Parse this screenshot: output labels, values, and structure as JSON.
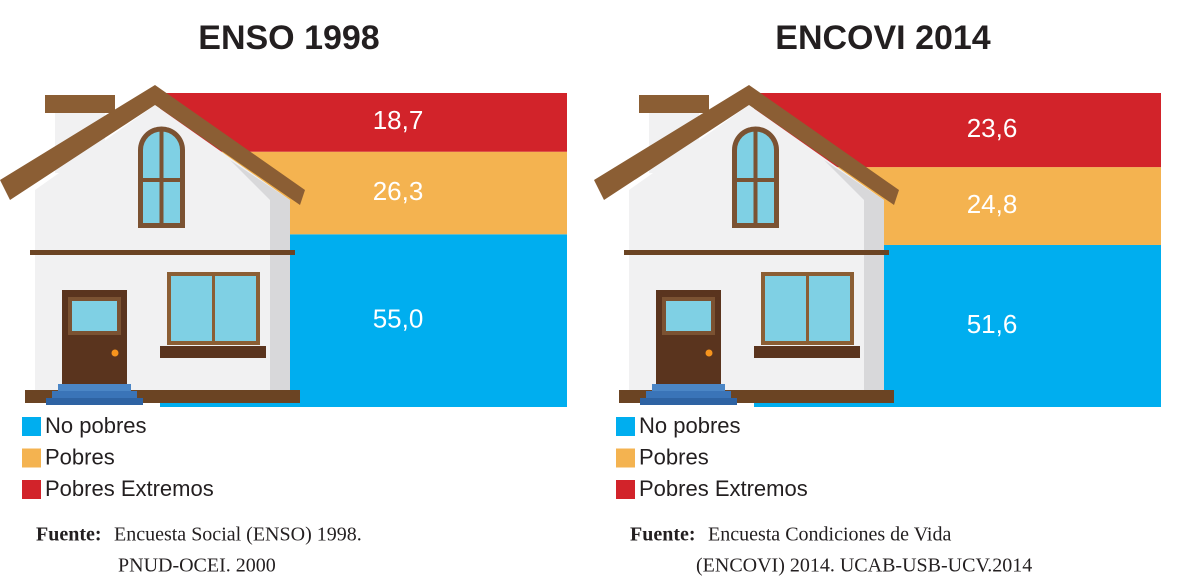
{
  "chart_data": [
    {
      "type": "stacked-bar",
      "title": "ENSO 1998",
      "series": [
        {
          "name": "No pobres",
          "color": "#00aeef",
          "values": [
            55.0
          ],
          "value_labels": [
            "55,0"
          ]
        },
        {
          "name": "Pobres",
          "color": "#f4b350",
          "values": [
            26.3
          ],
          "value_labels": [
            "26,3"
          ]
        },
        {
          "name": "Pobres Extremos",
          "color": "#d2232a",
          "values": [
            18.7
          ],
          "value_labels": [
            "18,7"
          ]
        }
      ],
      "source_label": "Fuente:",
      "source": [
        "Encuesta Social (ENSO) 1998.",
        "PNUD-OCEI. 2000"
      ]
    },
    {
      "type": "stacked-bar",
      "title": "ENCOVI 2014",
      "series": [
        {
          "name": "No pobres",
          "color": "#00aeef",
          "values": [
            51.6
          ],
          "value_labels": [
            "51,6"
          ]
        },
        {
          "name": "Pobres",
          "color": "#f4b350",
          "values": [
            24.8
          ],
          "value_labels": [
            "24,8"
          ]
        },
        {
          "name": "Pobres Extremos",
          "color": "#d2232a",
          "values": [
            23.6
          ],
          "value_labels": [
            "23,6"
          ]
        }
      ],
      "source_label": "Fuente:",
      "source": [
        "Encuesta Condiciones de Vida",
        "(ENCOVI) 2014. UCAB-USB-UCV.2014"
      ]
    }
  ]
}
